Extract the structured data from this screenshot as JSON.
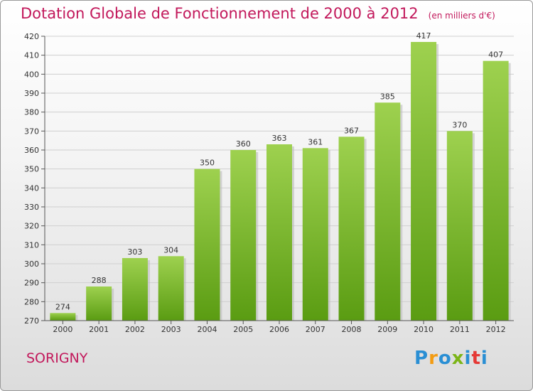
{
  "title": "Dotation Globale de Fonctionnement de 2000 à 2012",
  "unit": "(en milliers d'€)",
  "commune": "SORIGNY",
  "logo": {
    "letters": [
      "P",
      "r",
      "o",
      "x",
      "i",
      "t",
      "i"
    ],
    "colors": [
      "#2a8fd4",
      "#f39c12",
      "#2a8fd4",
      "#7cb518",
      "#2a8fd4",
      "#e53935",
      "#2a8fd4"
    ]
  },
  "colors": {
    "accent": "#c2185b",
    "bar_light": "#9ed14f",
    "bar_dark": "#5a9c12",
    "grid": "#cfcfcf"
  },
  "chart_data": {
    "type": "bar",
    "categories": [
      "2000",
      "2001",
      "2002",
      "2003",
      "2004",
      "2005",
      "2006",
      "2007",
      "2008",
      "2009",
      "2010",
      "2011",
      "2012"
    ],
    "values": [
      274,
      288,
      303,
      304,
      350,
      360,
      363,
      361,
      367,
      385,
      417,
      370,
      407
    ],
    "ylim": [
      270,
      420
    ],
    "yticks": [
      270,
      280,
      290,
      300,
      310,
      320,
      330,
      340,
      350,
      360,
      370,
      380,
      390,
      400,
      410,
      420
    ],
    "grid": true,
    "data_labels": true
  }
}
